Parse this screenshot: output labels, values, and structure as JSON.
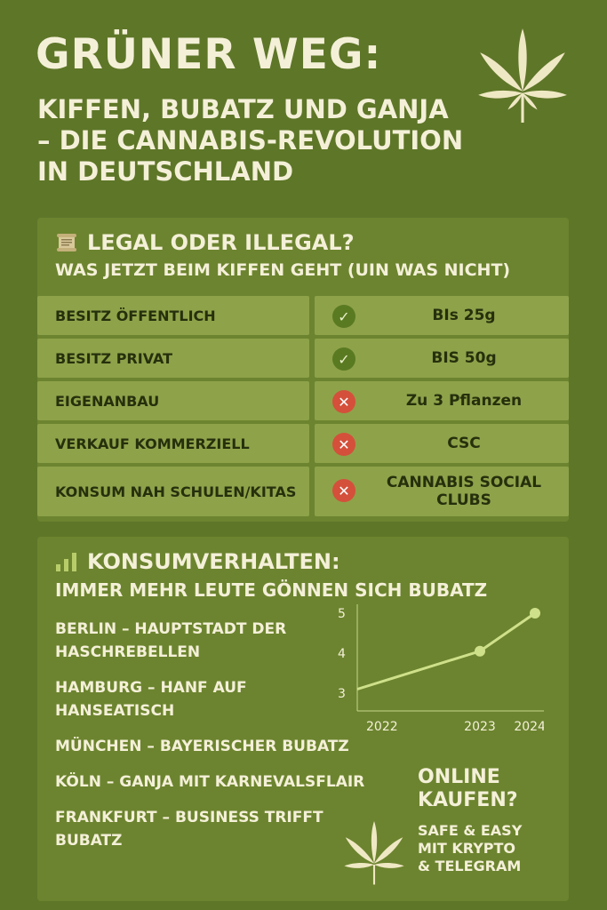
{
  "header": {
    "title": "GRÜNER WEG:",
    "subtitle_lines": [
      "KIFFEN, BUBATZ UND GANJA",
      "– DIE CANNABIS-REVOLUTION",
      "IN DEUTSCHLAND"
    ],
    "icon": "cannabis-leaf-icon"
  },
  "legal": {
    "icon": "scroll-icon",
    "heading": "LEGAL ODER ILLEGAL?",
    "subheading": "WAS JETZT BEIM KIFFEN GEHT (UIN WAS NICHT)",
    "rows": [
      {
        "label": "BESITZ ÖFFENTLICH",
        "status": "allowed",
        "status_icon": "check-icon",
        "value": "BIs 25g"
      },
      {
        "label": "BESITZ PRIVAT",
        "status": "allowed",
        "status_icon": "check-icon",
        "value": "BIS 50g"
      },
      {
        "label": "EIGENANBAU",
        "status": "forbidden",
        "status_icon": "cross-icon",
        "value": "Zu 3 Pflanzen"
      },
      {
        "label": "VERKAUF KOMMERZIELL",
        "status": "forbidden",
        "status_icon": "cross-icon",
        "value": "CSC"
      },
      {
        "label": "KONSUM NAH SCHULEN/KITAS",
        "status": "forbidden",
        "status_icon": "cross-icon",
        "value": "CANNABIS SOCIAL CLUBS"
      }
    ],
    "colors": {
      "allowed": "#5a7a22",
      "forbidden": "#d4503a"
    }
  },
  "consumption": {
    "icon": "bar-chart-icon",
    "heading": "KONSUMVERHALTEN:",
    "subheading": "IMMER MEHR LEUTE GÖNNEN SICH BUBATZ",
    "cities": [
      "BERLIN – HAUPTSTADT DER HASCHREBELLEN",
      "HAMBURG – HANF AUF HANSEATISCH",
      "MÜNCHEN – BAYERISCHER BUBATZ",
      "KÖLN – GANJA MIT KARNEVALSFLAIR",
      "FRANKFURT – BUSINESS TRIFFT BUBATZ"
    ]
  },
  "chart_data": {
    "type": "line",
    "categories": [
      "2022",
      "2023",
      "2024+"
    ],
    "series": [
      {
        "values": [
          3.1,
          4.05,
          5.0
        ]
      }
    ],
    "y_ticks": [
      "3",
      "4",
      "5"
    ],
    "ylim": [
      3,
      5
    ],
    "grid": false
  },
  "online": {
    "question_lines": [
      "ONLINE",
      "KAUFEN?"
    ],
    "answer_lines": [
      "SAFE & EASY",
      "MIT KRYPTO",
      "& TELEGRAM"
    ],
    "icon": "cannabis-leaf-icon"
  }
}
